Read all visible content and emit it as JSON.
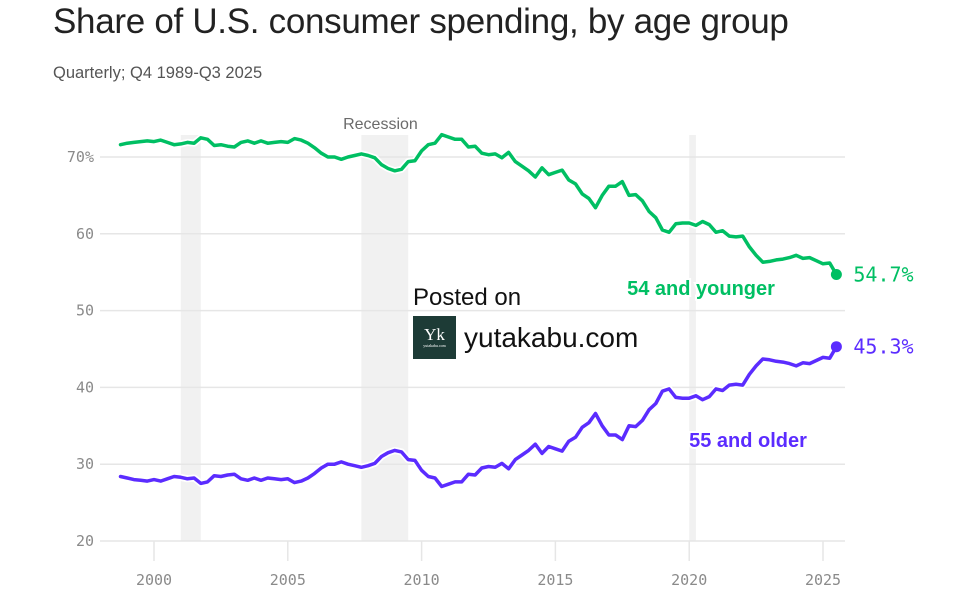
{
  "chart_data": {
    "type": "line",
    "title": "Share of U.S. consumer spending, by age group",
    "subtitle": "Quarterly; Q4 1989-Q3 2025",
    "xlabel": "",
    "ylabel": "",
    "xlim": [
      1998.0,
      2026.0
    ],
    "ylim": [
      20,
      70
    ],
    "y_ticks": [
      {
        "value": 70,
        "label": "70%"
      },
      {
        "value": 60,
        "label": "60"
      },
      {
        "value": 50,
        "label": "50"
      },
      {
        "value": 40,
        "label": "40"
      },
      {
        "value": 30,
        "label": "30"
      },
      {
        "value": 20,
        "label": "20"
      }
    ],
    "x_ticks": [
      {
        "value": 2000,
        "label": "2000"
      },
      {
        "value": 2005,
        "label": "2005"
      },
      {
        "value": 2010,
        "label": "2010"
      },
      {
        "value": 2015,
        "label": "2015"
      },
      {
        "value": 2020,
        "label": "2020"
      },
      {
        "value": 2025,
        "label": "2025"
      }
    ],
    "grid": true,
    "recessions": {
      "label": "Recession",
      "periods": [
        [
          2001.0,
          2001.75
        ],
        [
          2007.75,
          2009.5
        ],
        [
          2020.0,
          2020.25
        ]
      ]
    },
    "series": [
      {
        "name": "54 and younger",
        "color": "#00bf63",
        "end_label": "54.7%",
        "points": [
          [
            1998.75,
            71.6
          ],
          [
            1999.0,
            71.8
          ],
          [
            1999.25,
            71.9
          ],
          [
            1999.5,
            72.0
          ],
          [
            1999.75,
            72.1
          ],
          [
            2000.0,
            72.0
          ],
          [
            2000.25,
            72.2
          ],
          [
            2000.5,
            71.9
          ],
          [
            2000.75,
            71.6
          ],
          [
            2001.0,
            71.7
          ],
          [
            2001.25,
            71.9
          ],
          [
            2001.5,
            71.8
          ],
          [
            2001.75,
            72.5
          ],
          [
            2002.0,
            72.3
          ],
          [
            2002.25,
            71.5
          ],
          [
            2002.5,
            71.6
          ],
          [
            2002.75,
            71.4
          ],
          [
            2003.0,
            71.3
          ],
          [
            2003.25,
            71.9
          ],
          [
            2003.5,
            72.1
          ],
          [
            2003.75,
            71.8
          ],
          [
            2004.0,
            72.1
          ],
          [
            2004.25,
            71.8
          ],
          [
            2004.5,
            71.9
          ],
          [
            2004.75,
            72.0
          ],
          [
            2005.0,
            71.9
          ],
          [
            2005.25,
            72.4
          ],
          [
            2005.5,
            72.2
          ],
          [
            2005.75,
            71.8
          ],
          [
            2006.0,
            71.2
          ],
          [
            2006.25,
            70.5
          ],
          [
            2006.5,
            70.0
          ],
          [
            2006.75,
            70.0
          ],
          [
            2007.0,
            69.7
          ],
          [
            2007.25,
            70.0
          ],
          [
            2007.5,
            70.2
          ],
          [
            2007.75,
            70.4
          ],
          [
            2008.0,
            70.2
          ],
          [
            2008.25,
            69.9
          ],
          [
            2008.5,
            69.0
          ],
          [
            2008.75,
            68.5
          ],
          [
            2009.0,
            68.2
          ],
          [
            2009.25,
            68.4
          ],
          [
            2009.5,
            69.4
          ],
          [
            2009.75,
            69.5
          ],
          [
            2010.0,
            70.8
          ],
          [
            2010.25,
            71.6
          ],
          [
            2010.5,
            71.8
          ],
          [
            2010.75,
            72.9
          ],
          [
            2011.0,
            72.6
          ],
          [
            2011.25,
            72.3
          ],
          [
            2011.5,
            72.3
          ],
          [
            2011.75,
            71.3
          ],
          [
            2012.0,
            71.4
          ],
          [
            2012.25,
            70.5
          ],
          [
            2012.5,
            70.3
          ],
          [
            2012.75,
            70.4
          ],
          [
            2013.0,
            69.9
          ],
          [
            2013.25,
            70.6
          ],
          [
            2013.5,
            69.4
          ],
          [
            2013.75,
            68.8
          ],
          [
            2014.0,
            68.2
          ],
          [
            2014.25,
            67.4
          ],
          [
            2014.5,
            68.6
          ],
          [
            2014.75,
            67.7
          ],
          [
            2015.0,
            68.0
          ],
          [
            2015.25,
            68.3
          ],
          [
            2015.5,
            67.0
          ],
          [
            2015.75,
            66.5
          ],
          [
            2016.0,
            65.2
          ],
          [
            2016.25,
            64.6
          ],
          [
            2016.5,
            63.4
          ],
          [
            2016.75,
            65.0
          ],
          [
            2017.0,
            66.2
          ],
          [
            2017.25,
            66.2
          ],
          [
            2017.5,
            66.8
          ],
          [
            2017.75,
            65.0
          ],
          [
            2018.0,
            65.1
          ],
          [
            2018.25,
            64.3
          ],
          [
            2018.5,
            62.9
          ],
          [
            2018.75,
            62.1
          ],
          [
            2019.0,
            60.5
          ],
          [
            2019.25,
            60.2
          ],
          [
            2019.5,
            61.3
          ],
          [
            2019.75,
            61.4
          ],
          [
            2020.0,
            61.4
          ],
          [
            2020.25,
            61.1
          ],
          [
            2020.5,
            61.6
          ],
          [
            2020.75,
            61.2
          ],
          [
            2021.0,
            60.2
          ],
          [
            2021.25,
            60.4
          ],
          [
            2021.5,
            59.7
          ],
          [
            2021.75,
            59.6
          ],
          [
            2022.0,
            59.7
          ],
          [
            2022.25,
            58.3
          ],
          [
            2022.5,
            57.2
          ],
          [
            2022.75,
            56.3
          ],
          [
            2023.0,
            56.4
          ],
          [
            2023.25,
            56.6
          ],
          [
            2023.5,
            56.7
          ],
          [
            2023.75,
            56.9
          ],
          [
            2024.0,
            57.2
          ],
          [
            2024.25,
            56.8
          ],
          [
            2024.5,
            56.9
          ],
          [
            2024.75,
            56.5
          ],
          [
            2025.0,
            56.1
          ],
          [
            2025.25,
            56.2
          ],
          [
            2025.5,
            54.7
          ]
        ]
      },
      {
        "name": "55 and older",
        "color": "#5b2cff",
        "end_label": "45.3%",
        "points": [
          [
            1998.75,
            28.4
          ],
          [
            1999.0,
            28.2
          ],
          [
            1999.25,
            28.0
          ],
          [
            1999.5,
            27.9
          ],
          [
            1999.75,
            27.8
          ],
          [
            2000.0,
            28.0
          ],
          [
            2000.25,
            27.8
          ],
          [
            2000.5,
            28.1
          ],
          [
            2000.75,
            28.4
          ],
          [
            2001.0,
            28.3
          ],
          [
            2001.25,
            28.1
          ],
          [
            2001.5,
            28.2
          ],
          [
            2001.75,
            27.5
          ],
          [
            2002.0,
            27.7
          ],
          [
            2002.25,
            28.5
          ],
          [
            2002.5,
            28.4
          ],
          [
            2002.75,
            28.6
          ],
          [
            2003.0,
            28.7
          ],
          [
            2003.25,
            28.1
          ],
          [
            2003.5,
            27.9
          ],
          [
            2003.75,
            28.2
          ],
          [
            2004.0,
            27.9
          ],
          [
            2004.25,
            28.2
          ],
          [
            2004.5,
            28.1
          ],
          [
            2004.75,
            28.0
          ],
          [
            2005.0,
            28.1
          ],
          [
            2005.25,
            27.6
          ],
          [
            2005.5,
            27.8
          ],
          [
            2005.75,
            28.2
          ],
          [
            2006.0,
            28.8
          ],
          [
            2006.25,
            29.5
          ],
          [
            2006.5,
            30.0
          ],
          [
            2006.75,
            30.0
          ],
          [
            2007.0,
            30.3
          ],
          [
            2007.25,
            30.0
          ],
          [
            2007.5,
            29.8
          ],
          [
            2007.75,
            29.6
          ],
          [
            2008.0,
            29.8
          ],
          [
            2008.25,
            30.1
          ],
          [
            2008.5,
            31.0
          ],
          [
            2008.75,
            31.5
          ],
          [
            2009.0,
            31.8
          ],
          [
            2009.25,
            31.6
          ],
          [
            2009.5,
            30.6
          ],
          [
            2009.75,
            30.5
          ],
          [
            2010.0,
            29.2
          ],
          [
            2010.25,
            28.4
          ],
          [
            2010.5,
            28.2
          ],
          [
            2010.75,
            27.1
          ],
          [
            2011.0,
            27.4
          ],
          [
            2011.25,
            27.7
          ],
          [
            2011.5,
            27.7
          ],
          [
            2011.75,
            28.7
          ],
          [
            2012.0,
            28.6
          ],
          [
            2012.25,
            29.5
          ],
          [
            2012.5,
            29.7
          ],
          [
            2012.75,
            29.6
          ],
          [
            2013.0,
            30.1
          ],
          [
            2013.25,
            29.4
          ],
          [
            2013.5,
            30.6
          ],
          [
            2013.75,
            31.2
          ],
          [
            2014.0,
            31.8
          ],
          [
            2014.25,
            32.6
          ],
          [
            2014.5,
            31.4
          ],
          [
            2014.75,
            32.3
          ],
          [
            2015.0,
            32.0
          ],
          [
            2015.25,
            31.7
          ],
          [
            2015.5,
            33.0
          ],
          [
            2015.75,
            33.5
          ],
          [
            2016.0,
            34.8
          ],
          [
            2016.25,
            35.4
          ],
          [
            2016.5,
            36.6
          ],
          [
            2016.75,
            35.0
          ],
          [
            2017.0,
            33.8
          ],
          [
            2017.25,
            33.8
          ],
          [
            2017.5,
            33.2
          ],
          [
            2017.75,
            35.0
          ],
          [
            2018.0,
            34.9
          ],
          [
            2018.25,
            35.7
          ],
          [
            2018.5,
            37.1
          ],
          [
            2018.75,
            37.9
          ],
          [
            2019.0,
            39.5
          ],
          [
            2019.25,
            39.8
          ],
          [
            2019.5,
            38.7
          ],
          [
            2019.75,
            38.6
          ],
          [
            2020.0,
            38.6
          ],
          [
            2020.25,
            38.9
          ],
          [
            2020.5,
            38.4
          ],
          [
            2020.75,
            38.8
          ],
          [
            2021.0,
            39.8
          ],
          [
            2021.25,
            39.6
          ],
          [
            2021.5,
            40.3
          ],
          [
            2021.75,
            40.4
          ],
          [
            2022.0,
            40.3
          ],
          [
            2022.25,
            41.7
          ],
          [
            2022.5,
            42.8
          ],
          [
            2022.75,
            43.7
          ],
          [
            2023.0,
            43.6
          ],
          [
            2023.25,
            43.4
          ],
          [
            2023.5,
            43.3
          ],
          [
            2023.75,
            43.1
          ],
          [
            2024.0,
            42.8
          ],
          [
            2024.25,
            43.2
          ],
          [
            2024.5,
            43.1
          ],
          [
            2024.75,
            43.5
          ],
          [
            2025.0,
            43.9
          ],
          [
            2025.25,
            43.8
          ],
          [
            2025.5,
            45.3
          ]
        ]
      }
    ]
  },
  "watermark": {
    "posted_label": "Posted on",
    "logo_letter": "Yk",
    "logo_small": "yutakabu.com",
    "site": "yutakabu.com"
  }
}
